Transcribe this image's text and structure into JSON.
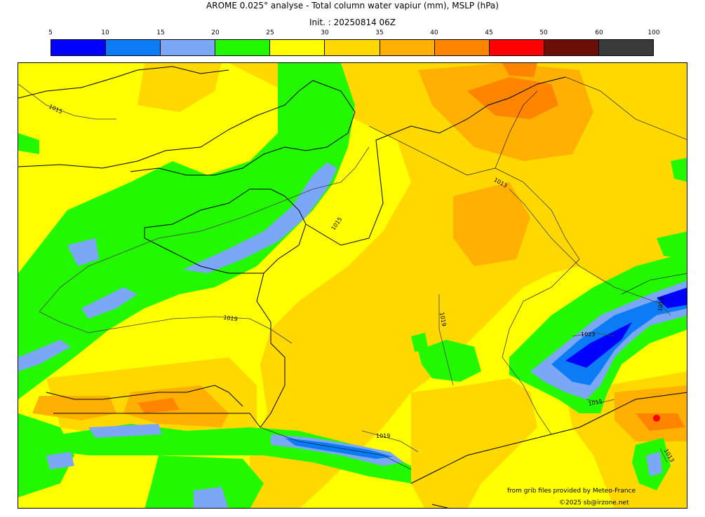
{
  "header": {
    "title": "AROME 0.025° analyse - Total column water vapiur (mm), MSLP (hPa)",
    "init": "Init. : 20250814 06Z"
  },
  "legend": {
    "ticks": [
      "5",
      "10",
      "15",
      "20",
      "25",
      "30",
      "35",
      "40",
      "45",
      "50",
      "60",
      "100"
    ],
    "colors": [
      "#0000ff",
      "#0b7cf5",
      "#7ba7f7",
      "#22f800",
      "#ffff00",
      "#ffd800",
      "#ffb000",
      "#ff8400",
      "#ff0000",
      "#6b0f06",
      "#3a3a3a"
    ]
  },
  "map": {
    "isobar_labels": [
      "1015",
      "1013",
      "1015",
      "1019",
      "1019",
      "1023",
      "1019",
      "1015",
      "1013",
      "1019"
    ]
  },
  "credits": {
    "source": "from grib files provided by Meteo-France",
    "copyright": "©2025 sb@irzone.net"
  }
}
